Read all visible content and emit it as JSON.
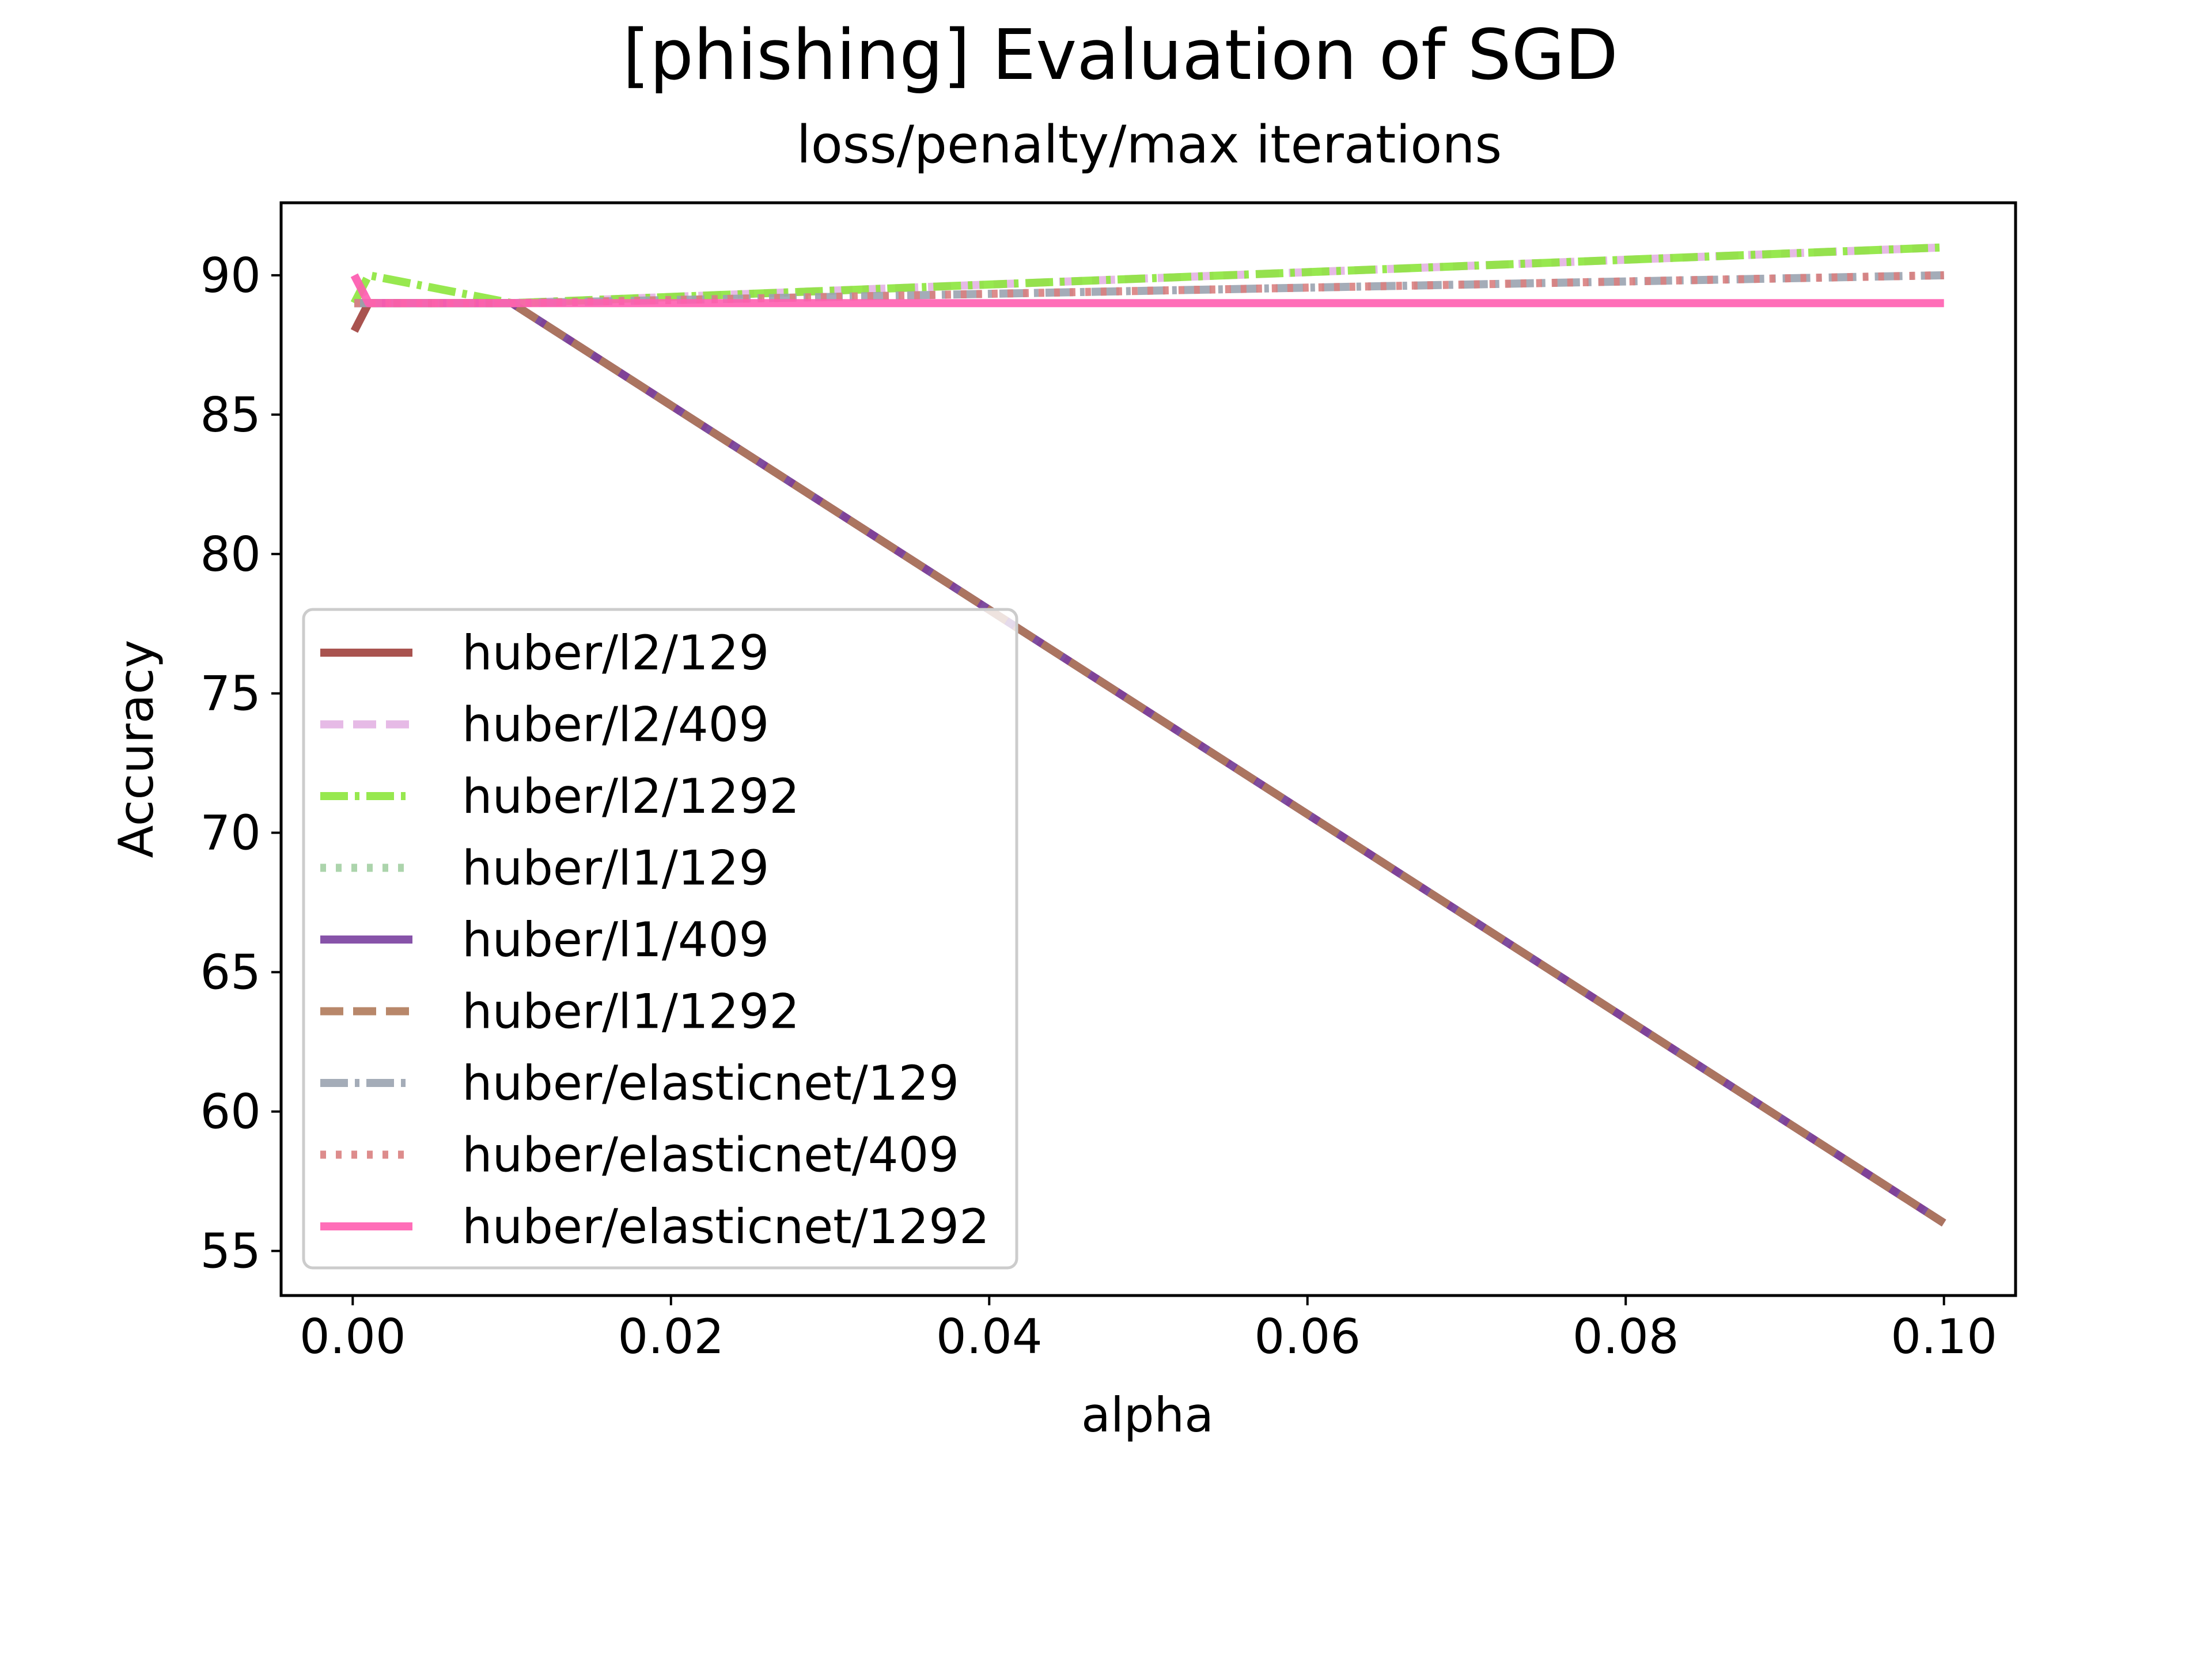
{
  "chart_data": {
    "type": "line",
    "title": "[phishing] Evaluation of SGD",
    "subtitle": "loss/penalty/max iterations",
    "xlabel": "alpha",
    "ylabel": "Accuracy",
    "xlim": [
      -0.0045,
      0.1045
    ],
    "ylim": [
      53.4,
      92.6
    ],
    "xticks": [
      0.0,
      0.02,
      0.04,
      0.06,
      0.08,
      0.1
    ],
    "xtick_labels": [
      "0.00",
      "0.02",
      "0.04",
      "0.06",
      "0.08",
      "0.10"
    ],
    "yticks": [
      55,
      60,
      65,
      70,
      75,
      80,
      85,
      90
    ],
    "ytick_labels": [
      "55",
      "60",
      "65",
      "70",
      "75",
      "80",
      "85",
      "90"
    ],
    "grid": false,
    "legend_position": "lower-left",
    "x": [
      0.0001,
      0.001,
      0.01,
      0.1
    ],
    "series": [
      {
        "name": "huber/l2/129",
        "values": [
          88.0,
          89.0,
          89.0,
          56.0
        ],
        "color": "#a0403c",
        "style": "solid"
      },
      {
        "name": "huber/l2/409",
        "values": [
          90.0,
          89.0,
          89.0,
          91.0
        ],
        "color": "#e3b3e3",
        "style": "dashed"
      },
      {
        "name": "huber/l2/1292",
        "values": [
          89.0,
          90.0,
          89.0,
          91.0
        ],
        "color": "#8ce63c",
        "style": "dashdot"
      },
      {
        "name": "huber/l1/129",
        "values": [
          89.0,
          89.0,
          89.0,
          56.0
        ],
        "color": "#a3cfa3",
        "style": "dotted"
      },
      {
        "name": "huber/l1/409",
        "values": [
          89.0,
          89.0,
          89.0,
          56.0
        ],
        "color": "#7a40a0",
        "style": "solid"
      },
      {
        "name": "huber/l1/1292",
        "values": [
          89.0,
          89.0,
          89.0,
          56.0
        ],
        "color": "#b07a5a",
        "style": "dashed"
      },
      {
        "name": "huber/elasticnet/129",
        "values": [
          89.0,
          89.0,
          89.0,
          90.0
        ],
        "color": "#9aa3b0",
        "style": "dashdot"
      },
      {
        "name": "huber/elasticnet/409",
        "values": [
          89.0,
          89.0,
          89.0,
          90.0
        ],
        "color": "#d98080",
        "style": "dotted"
      },
      {
        "name": "huber/elasticnet/1292",
        "values": [
          90.0,
          89.0,
          89.0,
          89.0
        ],
        "color": "#ff5eb0",
        "style": "solid"
      }
    ]
  }
}
